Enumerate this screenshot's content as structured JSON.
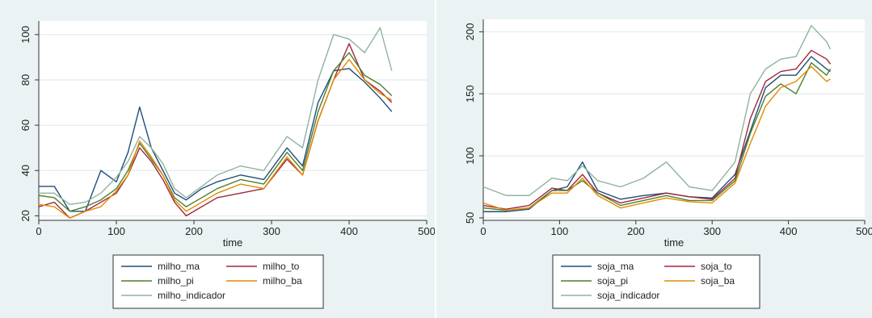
{
  "chart_data": [
    {
      "type": "line",
      "title": "",
      "xlabel": "time",
      "ylabel": "",
      "xlim": [
        0,
        500
      ],
      "ylim": [
        18,
        106
      ],
      "x_ticks": [
        0,
        100,
        200,
        300,
        400,
        500
      ],
      "y_ticks": [
        20,
        40,
        60,
        80,
        100
      ],
      "grid": true,
      "legend_position": "bottom",
      "colors": {
        "milho_ma": "#1f4e79",
        "milho_to": "#a0283c",
        "milho_pi": "#4f7f2f",
        "milho_ba": "#e28a00",
        "milho_indicador": "#8fb3a0"
      },
      "series": [
        {
          "name": "milho_ma",
          "x": [
            0,
            20,
            40,
            60,
            80,
            100,
            115,
            130,
            145,
            160,
            175,
            190,
            210,
            230,
            260,
            290,
            320,
            340,
            360,
            380,
            400,
            420,
            440,
            455
          ],
          "values": [
            33,
            33,
            22,
            22,
            40,
            35,
            48,
            68,
            50,
            40,
            30,
            27,
            32,
            35,
            38,
            36,
            50,
            42,
            70,
            84,
            85,
            79,
            72,
            66
          ]
        },
        {
          "name": "milho_to",
          "x": [
            0,
            20,
            40,
            60,
            80,
            100,
            115,
            130,
            145,
            160,
            175,
            190,
            210,
            230,
            260,
            290,
            320,
            340,
            360,
            380,
            400,
            420,
            440,
            455
          ],
          "values": [
            24,
            26,
            19,
            22,
            26,
            30,
            38,
            50,
            44,
            36,
            26,
            20,
            24,
            28,
            30,
            32,
            45,
            38,
            62,
            80,
            96,
            80,
            75,
            70
          ]
        },
        {
          "name": "milho_pi",
          "x": [
            0,
            20,
            40,
            60,
            80,
            100,
            115,
            130,
            145,
            160,
            175,
            190,
            210,
            230,
            260,
            290,
            320,
            340,
            360,
            380,
            400,
            420,
            440,
            455
          ],
          "values": [
            29,
            28,
            22,
            24,
            27,
            32,
            40,
            52,
            45,
            38,
            28,
            24,
            28,
            32,
            36,
            34,
            48,
            40,
            66,
            84,
            92,
            82,
            78,
            73
          ]
        },
        {
          "name": "milho_ba",
          "x": [
            0,
            20,
            40,
            60,
            80,
            100,
            115,
            130,
            145,
            160,
            175,
            190,
            210,
            230,
            260,
            290,
            320,
            340,
            360,
            380,
            400,
            420,
            440,
            455
          ],
          "values": [
            25,
            24,
            19,
            22,
            24,
            31,
            38,
            53,
            46,
            38,
            27,
            22,
            26,
            30,
            34,
            32,
            46,
            38,
            62,
            80,
            89,
            80,
            74,
            71
          ]
        },
        {
          "name": "milho_indicador",
          "x": [
            0,
            20,
            40,
            60,
            80,
            100,
            115,
            130,
            145,
            160,
            175,
            190,
            210,
            230,
            260,
            290,
            320,
            340,
            360,
            380,
            400,
            420,
            440,
            455
          ],
          "values": [
            30,
            30,
            25,
            26,
            30,
            37,
            44,
            55,
            50,
            43,
            32,
            28,
            33,
            38,
            42,
            40,
            55,
            50,
            80,
            100,
            98,
            92,
            103,
            84
          ]
        }
      ]
    },
    {
      "type": "line",
      "title": "",
      "xlabel": "time",
      "ylabel": "",
      "xlim": [
        0,
        500
      ],
      "ylim": [
        48,
        210
      ],
      "x_ticks": [
        0,
        100,
        200,
        300,
        400,
        500
      ],
      "y_ticks": [
        50,
        100,
        150,
        200
      ],
      "grid": true,
      "legend_position": "bottom",
      "colors": {
        "soja_ma": "#1f4e79",
        "soja_to": "#a0283c",
        "soja_pi": "#4f7f2f",
        "soja_ba": "#e28a00",
        "soja_indicador": "#8fb3a0"
      },
      "series": [
        {
          "name": "soja_ma",
          "x": [
            0,
            30,
            60,
            90,
            110,
            130,
            150,
            180,
            210,
            240,
            270,
            300,
            330,
            350,
            370,
            390,
            410,
            430,
            450,
            455
          ],
          "values": [
            55,
            55,
            57,
            72,
            75,
            95,
            72,
            65,
            68,
            70,
            67,
            66,
            85,
            120,
            155,
            165,
            165,
            180,
            170,
            168
          ]
        },
        {
          "name": "soja_to",
          "x": [
            0,
            30,
            60,
            90,
            110,
            130,
            150,
            180,
            210,
            240,
            270,
            300,
            330,
            350,
            370,
            390,
            410,
            430,
            450,
            455
          ],
          "values": [
            60,
            57,
            60,
            74,
            72,
            85,
            70,
            62,
            66,
            70,
            67,
            65,
            82,
            130,
            160,
            168,
            170,
            185,
            178,
            174
          ]
        },
        {
          "name": "soja_pi",
          "x": [
            0,
            30,
            60,
            90,
            110,
            130,
            150,
            180,
            210,
            240,
            270,
            300,
            330,
            350,
            370,
            390,
            410,
            430,
            450,
            455
          ],
          "values": [
            58,
            56,
            58,
            72,
            72,
            80,
            70,
            60,
            64,
            68,
            64,
            64,
            80,
            118,
            148,
            158,
            150,
            175,
            165,
            170
          ]
        },
        {
          "name": "soja_ba",
          "x": [
            0,
            30,
            60,
            90,
            110,
            130,
            150,
            180,
            210,
            240,
            270,
            300,
            330,
            350,
            370,
            390,
            410,
            430,
            450,
            455
          ],
          "values": [
            62,
            56,
            58,
            70,
            70,
            82,
            68,
            58,
            62,
            66,
            63,
            62,
            78,
            110,
            140,
            155,
            160,
            172,
            160,
            162
          ]
        },
        {
          "name": "soja_indicador",
          "x": [
            0,
            30,
            60,
            90,
            110,
            130,
            150,
            180,
            210,
            240,
            270,
            300,
            330,
            350,
            370,
            390,
            410,
            430,
            450,
            455
          ],
          "values": [
            75,
            68,
            68,
            82,
            80,
            92,
            80,
            75,
            82,
            95,
            75,
            72,
            95,
            150,
            170,
            178,
            180,
            205,
            192,
            186
          ]
        }
      ]
    }
  ]
}
